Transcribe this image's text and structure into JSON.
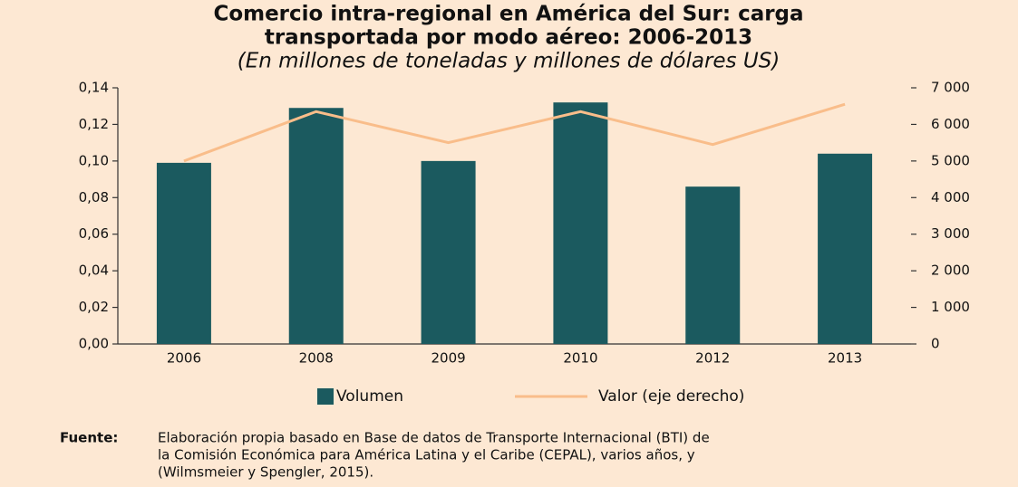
{
  "chart_data": {
    "type": "bar_line",
    "title": [
      "Comercio intra-regional en América del Sur: carga",
      "transportada por modo aéreo: 2006-2013"
    ],
    "subtitle": "(En millones de toneladas y millones de dólares US)",
    "categories": [
      "2006",
      "2008",
      "2009",
      "2010",
      "2012",
      "2013"
    ],
    "series": [
      {
        "name": "Volumen",
        "color": "#1b5a5f",
        "values": [
          0.099,
          0.129,
          0.1,
          0.132,
          0.086,
          0.104
        ]
      },
      {
        "name": "Valor (eje derecho)",
        "color": "#f9bd8a",
        "axis": "y2",
        "values": [
          5000,
          6350,
          5500,
          6350,
          5450,
          6550
        ]
      }
    ],
    "ylim": [
      0,
      0.14
    ],
    "yticks": [
      {
        "value": 0,
        "label": "0,00"
      },
      {
        "value": 0.02,
        "label": "0,02"
      },
      {
        "value": 0.04,
        "label": "0,04"
      },
      {
        "value": 0.06,
        "label": "0,06"
      },
      {
        "value": 0.08,
        "label": "0,08"
      },
      {
        "value": 0.1,
        "label": "0,10"
      },
      {
        "value": 0.12,
        "label": "0,12"
      },
      {
        "value": 0.14,
        "label": "0,14"
      }
    ],
    "y2lim": [
      0,
      7000
    ],
    "y2ticks": [
      0,
      {
        "value": 1000,
        "label": "1 000"
      },
      {
        "value": 2000,
        "label": "2 000"
      },
      {
        "value": 3000,
        "label": "3 000"
      },
      {
        "value": 4000,
        "label": "4 000"
      },
      {
        "value": 5000,
        "label": "5 000"
      },
      {
        "value": 6000,
        "label": "6 000"
      },
      {
        "value": 7000,
        "label": "7 000"
      }
    ],
    "legend": "bottom",
    "source_label": "Fuente:",
    "source_lines": [
      "Elaboración propia basado en Base de datos de Transporte Internacional (BTI) de",
      "la Comisión Económica para América Latina y el Caribe (CEPAL), varios años, y",
      "(Wilmsmeier y Spengler, 2015)."
    ]
  }
}
